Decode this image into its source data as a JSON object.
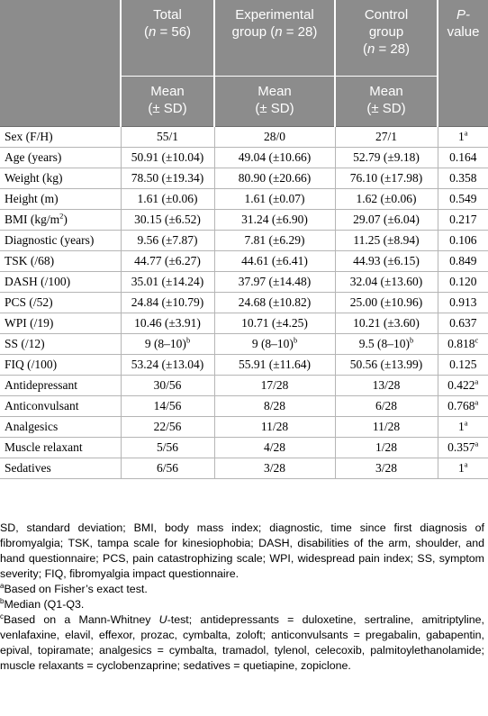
{
  "header": {
    "row1": [
      {
        "pre": "",
        "text": "Total",
        "line2": "(",
        "it": "n",
        "post": " = 56)"
      },
      {
        "pre": "",
        "text": "Experimental",
        "line2": "group (",
        "it": "n",
        "post": " = 28)"
      },
      {
        "pre": "",
        "text": "Control",
        "line2": "group",
        "line3": "(",
        "it": "n",
        "post": " = 28)"
      },
      {
        "p_label": "P-",
        "p_label2": "value"
      }
    ],
    "row2": [
      {
        "line1": "Mean",
        "line2": "(± SD)"
      },
      {
        "line1": "Mean",
        "line2": "(± SD)"
      },
      {
        "line1": "Mean",
        "line2": "(± SD)"
      }
    ]
  },
  "rows": [
    {
      "label": "Sex (F/H)",
      "total": "55/1",
      "exp": "28/0",
      "ctrl": "27/1",
      "p": "1",
      "p_sup": "a"
    },
    {
      "label": "Age (years)",
      "total": "50.91 (±10.04)",
      "exp": "49.04 (±10.66)",
      "ctrl": "52.79 (±9.18)",
      "p": "0.164",
      "p_sup": ""
    },
    {
      "label": "Weight (kg)",
      "total": "78.50 (±19.34)",
      "exp": "80.90 (±20.66)",
      "ctrl": "76.10 (±17.98)",
      "p": "0.358",
      "p_sup": ""
    },
    {
      "label": "Height (m)",
      "total": "1.61 (±0.06)",
      "exp": "1.61 (±0.07)",
      "ctrl": "1.62 (±0.06)",
      "p": "0.549",
      "p_sup": ""
    },
    {
      "label": "BMI (kg/m",
      "label_sup": "2",
      "label_post": ")",
      "total": "30.15 (±6.52)",
      "exp": "31.24 (±6.90)",
      "ctrl": "29.07 (±6.04)",
      "p": "0.217",
      "p_sup": ""
    },
    {
      "label": "Diagnostic (years)",
      "total": "9.56 (±7.87)",
      "exp": "7.81 (±6.29)",
      "ctrl": "11.25 (±8.94)",
      "p": "0.106",
      "p_sup": ""
    },
    {
      "label": "TSK (/68)",
      "total": "44.77 (±6.27)",
      "exp": "44.61 (±6.41)",
      "ctrl": "44.93 (±6.15)",
      "p": "0.849",
      "p_sup": ""
    },
    {
      "label": "DASH (/100)",
      "total": "35.01 (±14.24)",
      "exp": "37.97 (±14.48)",
      "ctrl": "32.04 (±13.60)",
      "p": "0.120",
      "p_sup": ""
    },
    {
      "label": "PCS (/52)",
      "total": "24.84 (±10.79)",
      "exp": "24.68 (±10.82)",
      "ctrl": "25.00 (±10.96)",
      "p": "0.913",
      "p_sup": ""
    },
    {
      "label": "WPI (/19)",
      "total": "10.46 (±3.91)",
      "exp": "10.71 (±4.25)",
      "ctrl": "10.21 (±3.60)",
      "p": "0.637",
      "p_sup": ""
    },
    {
      "label": "SS (/12)",
      "total": "9 (8–10)",
      "total_sup": "b",
      "exp": "9 (8–10)",
      "exp_sup": "b",
      "ctrl": "9.5 (8–10)",
      "ctrl_sup": "b",
      "p": "0.818",
      "p_sup": "c"
    },
    {
      "label": "FIQ (/100)",
      "total": "53.24 (±13.04)",
      "exp": "55.91 (±11.64)",
      "ctrl": "50.56 (±13.99)",
      "p": "0.125",
      "p_sup": ""
    },
    {
      "label": "Antidepressant",
      "total": "30/56",
      "exp": "17/28",
      "ctrl": "13/28",
      "p": "0.422",
      "p_sup": "a"
    },
    {
      "label": "Anticonvulsant",
      "total": "14/56",
      "exp": "8/28",
      "ctrl": "6/28",
      "p": "0.768",
      "p_sup": "a"
    },
    {
      "label": "Analgesics",
      "total": "22/56",
      "exp": "11/28",
      "ctrl": "11/28",
      "p": "1",
      "p_sup": "a"
    },
    {
      "label": "Muscle relaxant",
      "total": "5/56",
      "exp": "4/28",
      "ctrl": "1/28",
      "p": "0.357",
      "p_sup": "a"
    },
    {
      "label": "Sedatives",
      "total": "6/56",
      "exp": "3/28",
      "ctrl": "3/28",
      "p": "1",
      "p_sup": "a"
    }
  ],
  "notes": {
    "abbrev": "SD, standard deviation; BMI, body mass index; diagnostic, time since first diagnosis of fibromyalgia; TSK, tampa scale for kinesiophobia; DASH, disabilities of the arm, shoulder, and hand questionnaire; PCS, pain catastrophizing scale; WPI, widespread pain index; SS, symptom severity; FIQ, fibromyalgia impact questionnaire.",
    "a_mark": "a",
    "a_text": "Based on Fisher’s exact test.",
    "b_mark": "b",
    "b_text": "Median (Q1-Q3.",
    "c_mark": "c",
    "c_pre": "Based on a Mann-Whitney ",
    "c_it": "U",
    "c_post": "-test; antidepressants = duloxetine, sertraline, amitriptyline, venlafaxine, elavil, effexor, prozac, cymbalta, zoloft; anticonvulsants = pregabalin, gabapentin, epival, topiramate; analgesics = cymbalta, tramadol, tylenol, celecoxib, palmitoylethanolamide; muscle relaxants = cyclobenzaprine; sedatives = quetiapine, zopiclone."
  }
}
